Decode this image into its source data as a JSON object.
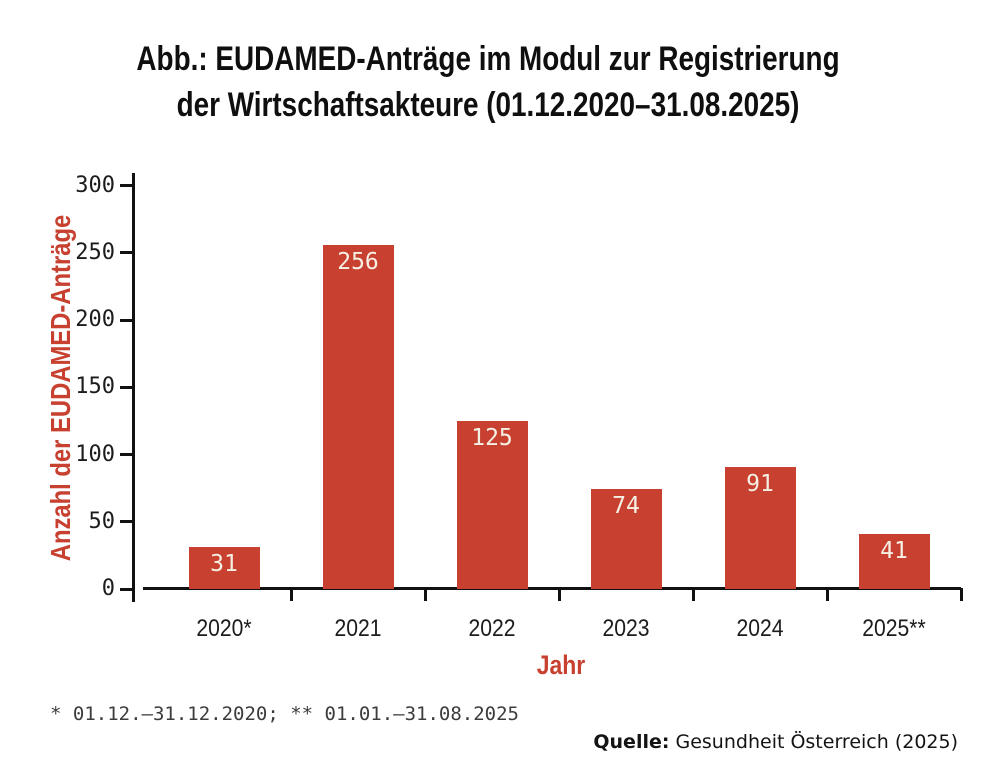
{
  "title": {
    "line1": "Abb.: EUDAMED-Anträge im Modul zur Registrierung",
    "line2": "der Wirtschaftsakteure (01.12.2020–31.08.2025)"
  },
  "chart_data": {
    "type": "bar",
    "title": "Abb.: EUDAMED-Anträge im Modul zur Registrierung der Wirtschaftsakteure (01.12.2020–31.08.2025)",
    "categories": [
      "2020*",
      "2021",
      "2022",
      "2023",
      "2024",
      "2025**"
    ],
    "values": [
      31,
      256,
      125,
      74,
      91,
      41
    ],
    "xlabel": "Jahr",
    "ylabel": "Anzahl der EUDAMED-Anträge",
    "ylim": [
      0,
      300
    ],
    "yticks": [
      0,
      50,
      100,
      150,
      200,
      250,
      300
    ],
    "grid": false,
    "legend": "none",
    "bar_color": "#C74030",
    "bar_label_color": "#F6F0E4"
  },
  "footnote": "* 01.12.–31.12.2020; ** 01.01.–31.08.2025",
  "source": {
    "label": "Quelle:",
    "text": "Gesundheit Österreich (2025)"
  },
  "colors": {
    "accent_red": "#C74030",
    "axis_black": "#111111",
    "background": "#FFFFFF"
  }
}
